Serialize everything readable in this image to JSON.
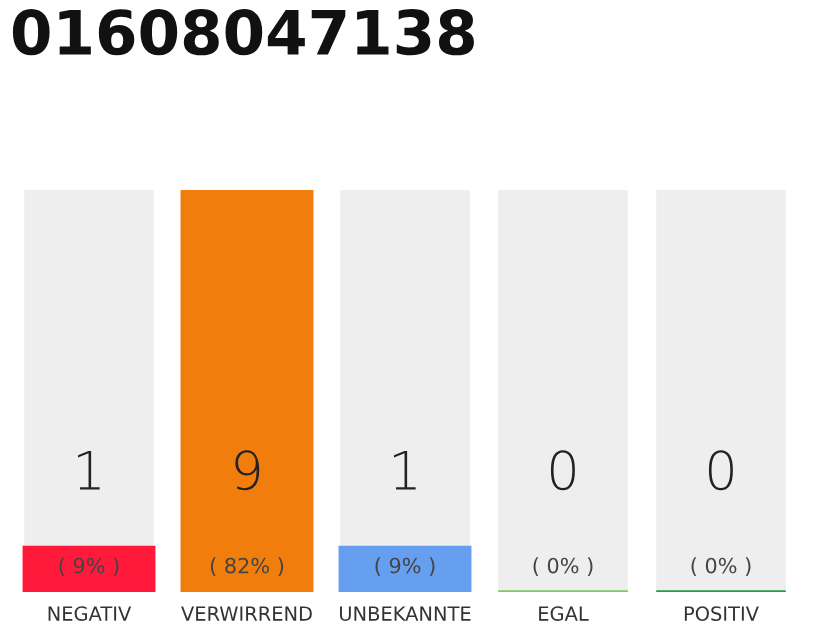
{
  "chart_data": {
    "type": "bar",
    "title": "01608047138",
    "categories": [
      "NEGATIV",
      "VERWIRREND",
      "UNBEKANNTE",
      "EGAL",
      "POSITIV"
    ],
    "values": [
      1,
      9,
      1,
      0,
      0
    ],
    "colors": [
      "#ff1a3c",
      "#f07d0c",
      "#669ef0",
      "#7dc95e",
      "#1fa045"
    ],
    "data_labels": true,
    "annotations": [
      "( 9% )",
      "( 82% )",
      "( 9% )",
      "( 0% )",
      "( 0% )"
    ],
    "grid": false,
    "legend": false
  }
}
